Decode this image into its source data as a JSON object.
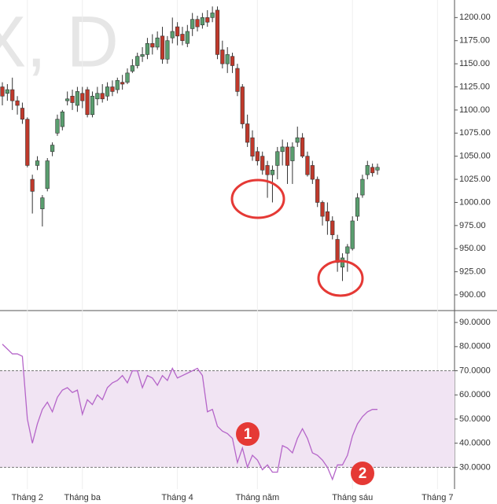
{
  "chart_data": [
    {
      "type": "candlestick",
      "watermark": "X, D",
      "up_color": "#5a9e6f",
      "down_color": "#c0392b",
      "grid": true,
      "categories": [
        null,
        null,
        null,
        null,
        null,
        "Tháng 2",
        null,
        null,
        null,
        null,
        null,
        null,
        null,
        null,
        null,
        null,
        "Tháng ba",
        null,
        null,
        null,
        null,
        null,
        null,
        null,
        null,
        null,
        null,
        null,
        null,
        null,
        null,
        null,
        null,
        null,
        null,
        "Tháng 4",
        null,
        null,
        null,
        null,
        null,
        null,
        null,
        null,
        null,
        null,
        null,
        null,
        null,
        null,
        null,
        "Tháng năm",
        null,
        null,
        null,
        null,
        null,
        null,
        null,
        null,
        null,
        null,
        null,
        null,
        null,
        null,
        null,
        null,
        null,
        null,
        "Tháng sáu",
        null,
        null,
        null,
        null,
        null,
        null,
        null,
        null,
        null,
        null,
        null,
        null,
        null,
        null,
        null,
        null,
        "Tháng 7",
        null,
        null,
        null
      ],
      "open": [
        1125,
        1118,
        1122,
        1110,
        1102,
        1090,
        1025,
        1040,
        993,
        1015,
        1055,
        1075,
        1082,
        1110,
        1115,
        1105,
        1118,
        1122,
        1095,
        1112,
        1118,
        1115,
        1125,
        1122,
        1130,
        1130,
        1142,
        1148,
        1158,
        1160,
        1172,
        1168,
        1180,
        1155,
        1178,
        1190,
        1182,
        1172,
        1188,
        1198,
        1192,
        1200,
        1200,
        1208,
        1165,
        1150,
        1158,
        1145,
        1125,
        1085,
        1070,
        1055,
        1050,
        1040,
        1030,
        1040,
        1055,
        1060,
        1045,
        1065,
        1070,
        1050,
        1040,
        1025,
        1000,
        990,
        980,
        960,
        930,
        945,
        950,
        985,
        1008,
        1030,
        1038,
        1035,
        null,
        null,
        null,
        null,
        null,
        null,
        null,
        null,
        null,
        null,
        null,
        null,
        null,
        null,
        null
      ],
      "high": [
        1130,
        1128,
        1135,
        1115,
        1108,
        1092,
        1030,
        1050,
        1008,
        1048,
        1065,
        1095,
        1100,
        1120,
        1122,
        1125,
        1125,
        1125,
        1120,
        1125,
        1128,
        1130,
        1132,
        1135,
        1138,
        1145,
        1155,
        1162,
        1168,
        1178,
        1182,
        1185,
        1190,
        1180,
        1200,
        1195,
        1190,
        1192,
        1205,
        1202,
        1205,
        1208,
        1212,
        1212,
        1175,
        1168,
        1162,
        1150,
        1128,
        1095,
        1078,
        1060,
        1055,
        1045,
        1040,
        1060,
        1068,
        1065,
        1065,
        1082,
        1075,
        1055,
        1045,
        1028,
        1002,
        1000,
        985,
        965,
        945,
        955,
        985,
        1010,
        1030,
        1045,
        1042,
        1042,
        null,
        null,
        null,
        null,
        null,
        null,
        null,
        null,
        null,
        null,
        null,
        null,
        null,
        null,
        null
      ],
      "low": [
        1105,
        1110,
        1100,
        1095,
        1085,
        1038,
        988,
        1035,
        974,
        1012,
        1050,
        1072,
        1078,
        1105,
        1100,
        1098,
        1102,
        1092,
        1092,
        1105,
        1108,
        1110,
        1115,
        1118,
        1122,
        1128,
        1140,
        1145,
        1152,
        1155,
        1160,
        1165,
        1150,
        1150,
        1172,
        1170,
        1170,
        1168,
        1180,
        1185,
        1188,
        1190,
        1195,
        1155,
        1145,
        1140,
        1140,
        1115,
        1080,
        1060,
        1045,
        1040,
        1030,
        1005,
        1000,
        1025,
        1040,
        1020,
        1020,
        1060,
        1048,
        1028,
        1020,
        995,
        975,
        965,
        960,
        925,
        915,
        925,
        948,
        980,
        1005,
        1025,
        1028,
        1030,
        null,
        null,
        null,
        null,
        null,
        null,
        null,
        null,
        null,
        null,
        null,
        null,
        null,
        null,
        null
      ],
      "close": [
        1115,
        1122,
        1110,
        1105,
        1090,
        1040,
        1012,
        1045,
        1005,
        1045,
        1062,
        1090,
        1098,
        1112,
        1108,
        1120,
        1110,
        1095,
        1115,
        1118,
        1112,
        1125,
        1120,
        1132,
        1128,
        1140,
        1148,
        1158,
        1160,
        1172,
        1168,
        1178,
        1155,
        1175,
        1185,
        1180,
        1175,
        1185,
        1198,
        1190,
        1200,
        1195,
        1205,
        1160,
        1150,
        1160,
        1148,
        1120,
        1085,
        1065,
        1050,
        1045,
        1035,
        1030,
        1035,
        1055,
        1060,
        1040,
        1060,
        1070,
        1050,
        1030,
        1025,
        1000,
        985,
        980,
        965,
        935,
        940,
        952,
        980,
        1005,
        1025,
        1040,
        1032,
        1038,
        null,
        null,
        null,
        null,
        null,
        null,
        null,
        null,
        null,
        null,
        null,
        null,
        null,
        null,
        null
      ],
      "ylim": [
        883,
        1219
      ],
      "yticks": [
        {
          "value": 900,
          "label": "900.00"
        },
        {
          "value": 925,
          "label": "925.00"
        },
        {
          "value": 950,
          "label": "950.00"
        },
        {
          "value": 975,
          "label": "975.00"
        },
        {
          "value": 1000,
          "label": "1000.00"
        },
        {
          "value": 1025,
          "label": "1025.00"
        },
        {
          "value": 1050,
          "label": "1050.00"
        },
        {
          "value": 1075,
          "label": "1075.00"
        },
        {
          "value": 1100,
          "label": "1100.00"
        },
        {
          "value": 1125,
          "label": "1125.00"
        },
        {
          "value": 1150,
          "label": "1150.00"
        },
        {
          "value": 1175,
          "label": "1175.00"
        },
        {
          "value": 1200,
          "label": "1200.00"
        }
      ]
    },
    {
      "type": "line",
      "band": [
        30,
        70
      ],
      "band_color": "#f1e4f3",
      "annotations": [
        "1",
        "2"
      ],
      "series": [
        {
          "color": "#b565c9",
          "values": [
            81,
            79,
            77,
            77,
            76,
            50,
            40,
            48,
            54,
            57,
            53,
            59,
            62,
            63,
            61,
            62,
            52,
            58,
            56,
            60,
            58,
            63,
            65,
            66,
            68,
            65,
            70,
            70,
            63,
            68,
            67,
            64,
            68,
            66,
            71,
            67,
            68,
            69,
            70,
            71,
            68,
            53,
            54,
            47,
            45,
            44,
            42,
            32,
            38,
            30,
            35,
            33,
            29,
            31,
            28,
            28,
            39,
            38,
            36,
            42,
            46,
            42,
            36,
            35,
            33,
            30,
            25,
            31,
            31,
            35,
            43,
            48,
            51,
            53,
            54,
            54,
            null,
            null,
            null,
            null,
            null,
            null,
            null,
            null,
            null,
            null,
            null,
            null,
            null,
            null,
            null
          ]
        }
      ],
      "ylim": [
        21,
        94.6
      ],
      "yticks": [
        {
          "value": 30,
          "label": "30.0000"
        },
        {
          "value": 40,
          "label": "40.0000"
        },
        {
          "value": 50,
          "label": "50.0000"
        },
        {
          "value": 60,
          "label": "60.0000"
        },
        {
          "value": 70,
          "label": "70.0000"
        },
        {
          "value": 80,
          "label": "80.0000"
        },
        {
          "value": 90,
          "label": "90.0000"
        }
      ]
    }
  ]
}
